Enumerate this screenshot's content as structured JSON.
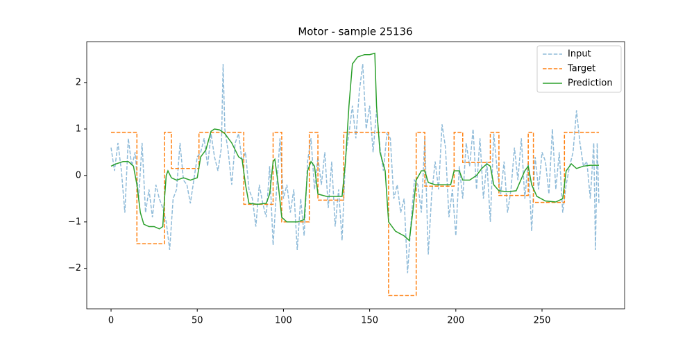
{
  "chart_data": {
    "type": "line",
    "title": "Motor - sample 25136",
    "xlim": [
      -14.1,
      297.9
    ],
    "ylim": [
      -2.87,
      2.88
    ],
    "xticks": [
      0,
      50,
      100,
      150,
      200,
      250
    ],
    "yticks": [
      {
        "value": -2,
        "label": "−2"
      },
      {
        "value": -1,
        "label": "−1"
      },
      0,
      1,
      2
    ],
    "legend": "upper right",
    "series": [
      {
        "name": "Input",
        "color": "#1f77b4",
        "style": "dashed",
        "opacity": 0.5,
        "x": [
          0,
          2,
          4,
          6,
          8,
          10,
          12,
          14,
          16,
          18,
          20,
          22,
          24,
          26,
          28,
          30,
          32,
          34,
          36,
          38,
          40,
          42,
          44,
          46,
          48,
          50,
          52,
          54,
          56,
          58,
          60,
          62,
          64,
          65,
          66,
          68,
          70,
          72,
          74,
          76,
          78,
          80,
          82,
          84,
          86,
          88,
          90,
          92,
          94,
          96,
          98,
          100,
          102,
          104,
          106,
          108,
          110,
          112,
          114,
          116,
          118,
          120,
          122,
          124,
          126,
          128,
          130,
          132,
          134,
          136,
          138,
          140,
          142,
          144,
          146,
          148,
          150,
          152,
          154,
          156,
          158,
          160,
          162,
          164,
          166,
          168,
          170,
          172,
          174,
          176,
          178,
          180,
          182,
          184,
          186,
          188,
          190,
          192,
          194,
          196,
          198,
          200,
          202,
          204,
          206,
          208,
          210,
          212,
          214,
          216,
          218,
          220,
          222,
          224,
          226,
          228,
          230,
          232,
          234,
          236,
          238,
          240,
          242,
          244,
          246,
          248,
          250,
          252,
          254,
          256,
          258,
          260,
          262,
          264,
          266,
          268,
          270,
          272,
          274,
          276,
          278,
          280,
          281,
          282,
          283
        ],
        "values": [
          0.6,
          0.1,
          0.7,
          0.1,
          -0.8,
          0.8,
          0.2,
          0.5,
          -0.5,
          0.7,
          -0.8,
          -0.3,
          -0.9,
          -0.2,
          -0.5,
          -0.7,
          -1.0,
          -1.6,
          -0.5,
          -0.3,
          0.7,
          -0.1,
          -0.2,
          -0.6,
          -0.1,
          0.4,
          0.5,
          0.8,
          0.2,
          0.9,
          0.4,
          0.1,
          0.6,
          2.4,
          1.0,
          0.5,
          -0.2,
          0.7,
          0.9,
          0.3,
          0.5,
          -0.3,
          -0.5,
          -1.1,
          -0.2,
          -0.6,
          -0.9,
          0.2,
          -1.5,
          -0.3,
          0.8,
          -0.5,
          -0.2,
          -0.8,
          -0.3,
          -1.6,
          -0.5,
          -1.3,
          0.3,
          0.8,
          -0.3,
          0.4,
          -0.2,
          0.5,
          -0.7,
          0.3,
          -1.1,
          -0.3,
          -1.4,
          0.4,
          0.9,
          1.5,
          0.8,
          1.8,
          2.4,
          1.0,
          1.5,
          0.5,
          1.4,
          0.6,
          0.1,
          0.9,
          0.8,
          -0.5,
          -0.2,
          -0.8,
          -0.5,
          -2.1,
          -1.0,
          -0.1,
          -0.2,
          -0.8,
          0.8,
          -1.7,
          -0.4,
          0.3,
          -0.3,
          1.1,
          0.6,
          -0.9,
          -0.3,
          -1.3,
          0.2,
          -0.5,
          0.7,
          0.2,
          1.0,
          -0.3,
          0.8,
          -0.5,
          0.3,
          -1.0,
          0.9,
          0.1,
          -0.4,
          0.3,
          -0.8,
          -0.3,
          0.6,
          -0.1,
          0.8,
          -0.5,
          0.3,
          -1.2,
          0.4,
          -0.3,
          0.5,
          0.3,
          -0.4,
          1.0,
          -0.3,
          0.5,
          -0.8,
          -0.2,
          0.2,
          0.5,
          1.4,
          0.7,
          0.2,
          0.3,
          -0.5,
          0.7,
          -1.6,
          0.7,
          -0.6
        ]
      },
      {
        "name": "Target",
        "color": "#ff7f0e",
        "style": "dashed",
        "opacity": 1,
        "x": [
          0,
          15,
          15,
          31,
          31,
          35,
          35,
          51,
          51,
          77,
          77,
          94,
          94,
          99,
          99,
          115,
          115,
          120,
          120,
          135,
          135,
          161,
          161,
          177,
          177,
          182,
          182,
          199,
          199,
          204,
          204,
          220,
          220,
          225,
          225,
          242,
          242,
          245,
          245,
          263,
          263,
          283
        ],
        "values": [
          0.93,
          0.93,
          -1.47,
          -1.47,
          0.93,
          0.93,
          0.15,
          0.15,
          0.93,
          0.93,
          -0.62,
          -0.62,
          0.93,
          0.93,
          -1.0,
          -1.0,
          0.93,
          0.93,
          -0.53,
          -0.53,
          0.93,
          0.93,
          -2.58,
          -2.58,
          0.93,
          0.93,
          -0.23,
          -0.23,
          0.93,
          0.93,
          0.28,
          0.28,
          0.93,
          0.93,
          -0.43,
          -0.43,
          0.93,
          0.93,
          -0.58,
          -0.58,
          0.93,
          0.93
        ]
      },
      {
        "name": "Prediction",
        "color": "#2ca02c",
        "style": "solid",
        "opacity": 1,
        "x": [
          0,
          3,
          7,
          10,
          13,
          15,
          17,
          19,
          22,
          25,
          28,
          30,
          31,
          32,
          33,
          35,
          38,
          42,
          46,
          50,
          52,
          55,
          58,
          60,
          63,
          66,
          70,
          74,
          76,
          78,
          80,
          85,
          90,
          92,
          94,
          95,
          97,
          99,
          102,
          108,
          112,
          114,
          116,
          118,
          120,
          125,
          130,
          134,
          136,
          138,
          140,
          143,
          147,
          150,
          153,
          154,
          156,
          159,
          161,
          165,
          170,
          173,
          175,
          177,
          180,
          182,
          184,
          188,
          192,
          197,
          199,
          202,
          204,
          208,
          212,
          215,
          218,
          220,
          222,
          225,
          230,
          235,
          240,
          242,
          244,
          247,
          252,
          258,
          262,
          264,
          267,
          270,
          274,
          278,
          283
        ],
        "values": [
          0.2,
          0.25,
          0.3,
          0.3,
          0.2,
          -0.2,
          -0.8,
          -1.05,
          -1.1,
          -1.1,
          -1.15,
          -1.1,
          -0.5,
          0,
          0.1,
          -0.05,
          -0.1,
          -0.05,
          -0.1,
          -0.05,
          0.4,
          0.55,
          0.95,
          1.0,
          0.98,
          0.9,
          0.7,
          0.4,
          0.35,
          -0.2,
          -0.6,
          -0.62,
          -0.6,
          -0.4,
          0.3,
          0.35,
          -0.2,
          -0.9,
          -1.0,
          -1.0,
          -0.95,
          0.1,
          0.3,
          0.2,
          -0.4,
          -0.45,
          -0.45,
          -0.45,
          0.3,
          1.5,
          2.4,
          2.55,
          2.6,
          2.6,
          2.63,
          1.5,
          0.5,
          0.1,
          -1.0,
          -1.2,
          -1.3,
          -1.4,
          -0.8,
          -0.1,
          0.1,
          0.1,
          -0.15,
          -0.2,
          -0.2,
          -0.2,
          0.1,
          0.1,
          -0.1,
          -0.1,
          0.0,
          0.15,
          0.25,
          0.2,
          -0.2,
          -0.33,
          -0.35,
          -0.33,
          0.1,
          0.2,
          -0.2,
          -0.45,
          -0.55,
          -0.57,
          -0.5,
          0.1,
          0.25,
          0.15,
          0.2,
          0.22,
          0.22
        ]
      }
    ]
  }
}
